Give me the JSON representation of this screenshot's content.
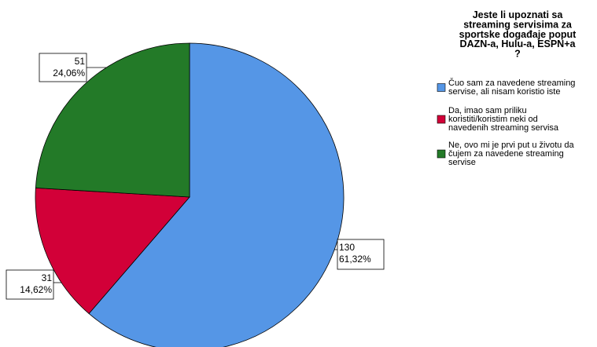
{
  "chart_data": {
    "type": "pie",
    "title": "Jeste li upoznati sa\nstreaming servisima za\nsportske događaje poput\nDAZN-a, Hulu-a, ESPN+a\n?",
    "categories": [
      "Čuo sam za navedene streaming\nservise, ali nisam koristio iste",
      "Da, imao sam priliku\nkoristiti/koristim neki od\nnavedenih streaming servisa",
      "Ne, ovo mi je prvi put u životu da\nčujem za navedene streaming\nservise"
    ],
    "values": [
      130,
      31,
      51
    ],
    "percent_labels": [
      "61,32%",
      "14,62%",
      "24,06%"
    ],
    "colors": [
      "#5596e6",
      "#d20038",
      "#237a28"
    ]
  }
}
